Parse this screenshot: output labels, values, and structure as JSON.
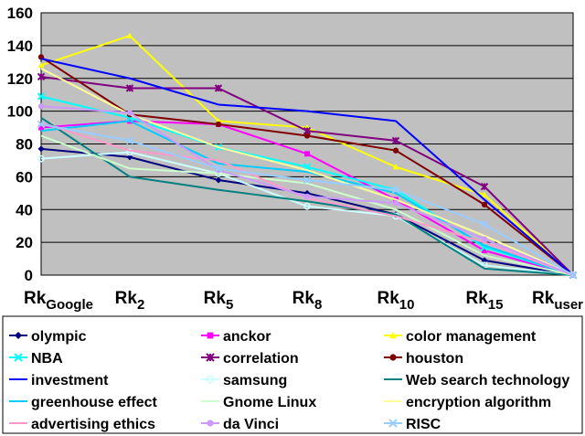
{
  "chart_data": {
    "type": "line",
    "title": "",
    "xlabel": "",
    "ylabel": "",
    "ylim": [
      0,
      160
    ],
    "y_ticks": [
      "0",
      "20",
      "40",
      "60",
      "80",
      "100",
      "120",
      "140",
      "160"
    ],
    "categories": [
      {
        "base": "Rk",
        "sub": "Google"
      },
      {
        "base": "Rk",
        "sub": "2"
      },
      {
        "base": "Rk",
        "sub": "5"
      },
      {
        "base": "Rk",
        "sub": "8"
      },
      {
        "base": "Rk",
        "sub": "10"
      },
      {
        "base": "Rk",
        "sub": "15"
      },
      {
        "base": "Rk",
        "sub": "user"
      }
    ],
    "grid": "horizontal",
    "plot_background": "#c0c0c0",
    "legend_position": "bottom",
    "series": [
      {
        "name": "olympic",
        "color": "#000080",
        "marker": "diamond",
        "values": [
          77,
          72,
          58,
          50,
          37,
          9,
          0
        ]
      },
      {
        "name": "anckor",
        "color": "#ff00ff",
        "marker": "square",
        "values": [
          90,
          94,
          92,
          74,
          46,
          15,
          0
        ]
      },
      {
        "name": "color management",
        "color": "#ffff00",
        "marker": "triangle",
        "values": [
          128,
          146,
          94,
          90,
          66,
          49,
          0
        ]
      },
      {
        "name": "NBA",
        "color": "#00ffff",
        "marker": "x",
        "values": [
          109,
          96,
          78,
          66,
          52,
          17,
          0
        ]
      },
      {
        "name": "correlation",
        "color": "#800080",
        "marker": "star",
        "values": [
          121,
          114,
          114,
          88,
          82,
          54,
          0
        ]
      },
      {
        "name": "houston",
        "color": "#800000",
        "marker": "circle",
        "values": [
          133,
          98,
          92,
          85,
          76,
          43,
          0
        ]
      },
      {
        "name": "investment",
        "color": "#0000ff",
        "marker": "none",
        "values": [
          132,
          120,
          104,
          100,
          94,
          46,
          0
        ]
      },
      {
        "name": "samsung",
        "color": "#ccffff",
        "marker": "circle-open",
        "values": [
          71,
          75,
          62,
          42,
          36,
          6,
          0
        ]
      },
      {
        "name": "Web search technology",
        "color": "#008080",
        "marker": "none",
        "values": [
          96,
          60,
          52,
          45,
          37,
          4,
          0
        ]
      },
      {
        "name": "greenhouse effect",
        "color": "#00ccff",
        "marker": "none",
        "values": [
          88,
          94,
          68,
          63,
          50,
          18,
          0
        ]
      },
      {
        "name": "Gnome Linux",
        "color": "#ccffcc",
        "marker": "none",
        "values": [
          85,
          65,
          62,
          56,
          40,
          12,
          0
        ]
      },
      {
        "name": "encryption algorithm",
        "color": "#ffff99",
        "marker": "none",
        "values": [
          126,
          98,
          78,
          64,
          46,
          24,
          0
        ]
      },
      {
        "name": "advertising ethics",
        "color": "#ff99cc",
        "marker": "none",
        "values": [
          93,
          76,
          70,
          47,
          36,
          20,
          0
        ]
      },
      {
        "name": "da Vinci",
        "color": "#cc99ff",
        "marker": "circle",
        "values": [
          103,
          99,
          64,
          48,
          44,
          22,
          0
        ]
      },
      {
        "name": "RISC",
        "color": "#99ccff",
        "marker": "x",
        "values": [
          92,
          82,
          65,
          58,
          52,
          31,
          0
        ]
      }
    ]
  }
}
